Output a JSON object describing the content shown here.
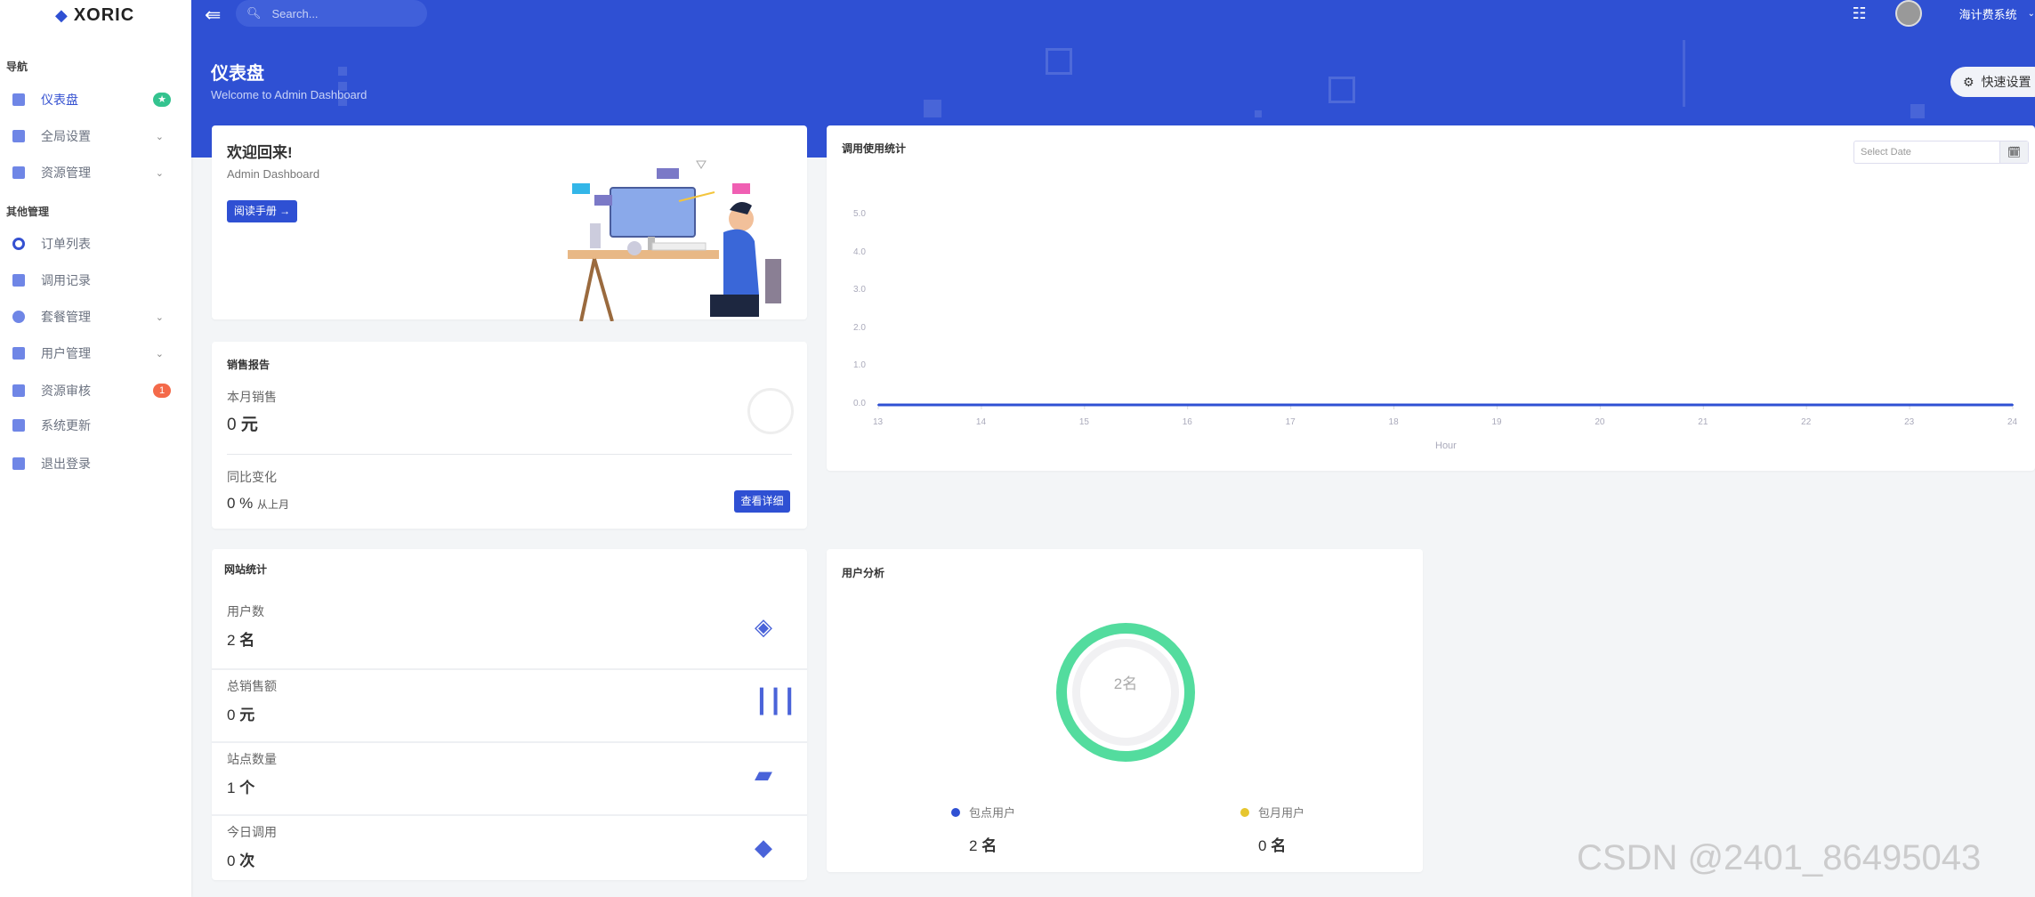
{
  "app": {
    "logo": "XORIC"
  },
  "topbar": {
    "search_placeholder": "Search...",
    "user_name": "海计费系统"
  },
  "sidebar": {
    "sections": [
      {
        "label": "导航"
      },
      {
        "label": "其他管理"
      }
    ],
    "items": [
      {
        "label": "仪表盘",
        "badge": "★",
        "badge_color": "#34c38f",
        "active": true
      },
      {
        "label": "全局设置",
        "expandable": true
      },
      {
        "label": "资源管理",
        "expandable": true
      },
      {
        "label": "订单列表"
      },
      {
        "label": "调用记录"
      },
      {
        "label": "套餐管理",
        "expandable": true
      },
      {
        "label": "用户管理",
        "expandable": true
      },
      {
        "label": "资源审核",
        "badge": "1",
        "badge_color": "#f46a4a"
      },
      {
        "label": "系统更新"
      },
      {
        "label": "退出登录"
      }
    ]
  },
  "page": {
    "title": "仪表盘",
    "subtitle": "Welcome to Admin Dashboard",
    "quick_settings": "快速设置"
  },
  "welcome": {
    "title": "欢迎回来!",
    "subtitle": "Admin Dashboard",
    "button": "阅读手册 →"
  },
  "sales": {
    "title": "销售报告",
    "month_label": "本月销售",
    "month_value": "0",
    "month_unit": "元",
    "change_label": "同比变化",
    "change_value": "0 %",
    "change_suffix": "从上月",
    "details_button": "查看详细"
  },
  "site_stats": {
    "title": "网站统计",
    "rows": [
      {
        "label": "用户数",
        "value": "2",
        "unit": "名",
        "icon": "layers-icon"
      },
      {
        "label": "总销售额",
        "value": "0",
        "unit": "元",
        "icon": "bar-chart-icon"
      },
      {
        "label": "站点数量",
        "value": "1",
        "unit": "个",
        "icon": "ruler-icon"
      },
      {
        "label": "今日调用",
        "value": "0",
        "unit": "次",
        "icon": "cube-icon"
      }
    ]
  },
  "usage": {
    "title": "调用使用统计",
    "date_placeholder": "Select Date"
  },
  "chart_data": {
    "type": "line",
    "xlabel": "Hour",
    "ylabel": "",
    "x": [
      13,
      14,
      15,
      16,
      17,
      18,
      19,
      20,
      21,
      22,
      23,
      24
    ],
    "values": [
      0,
      0,
      0,
      0,
      0,
      0,
      0,
      0,
      0,
      0,
      0,
      0
    ],
    "yticks": [
      "0.0",
      "1.0",
      "2.0",
      "3.0",
      "4.0",
      "5.0"
    ],
    "ylim": [
      0,
      5
    ],
    "color": "#2f50d3",
    "grid": false
  },
  "users": {
    "title": "用户分析",
    "center": "2名",
    "legend": [
      {
        "label": "包点用户",
        "value": "2",
        "unit": "名",
        "color": "#2f50d3"
      },
      {
        "label": "包月用户",
        "value": "0",
        "unit": "名",
        "color": "#e6c62f"
      }
    ],
    "ring_color": "#53dc9e"
  },
  "watermark": "CSDN @2401_86495043"
}
